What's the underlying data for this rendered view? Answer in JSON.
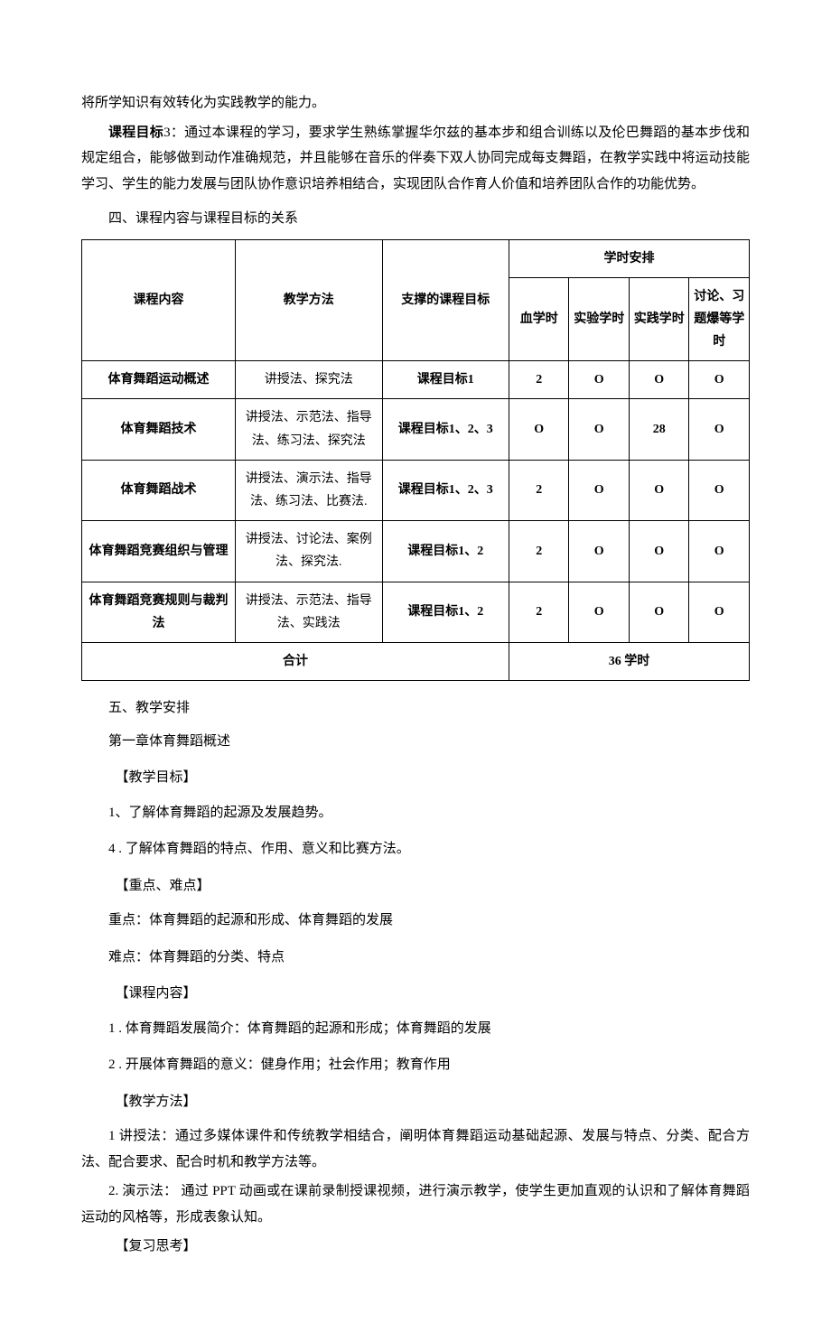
{
  "intro": {
    "line1": "将所学知识有效转化为实践教学的能力。",
    "goal3_label": "课程目标",
    "goal3_num": "3：",
    "goal3_text": "通过本课程的学习，要求学生熟练掌握华尔兹的基本步和组合训练以及伦巴舞蹈的基本步伐和规定组合，能够做到动作准确规范，并且能够在音乐的伴奏下双人协同完成每支舞蹈，在教学实践中将运动技能学习、学生的能力发展与团队协作意识培养相结合，实现团队合作育人价值和培养团队合作的功能优势。"
  },
  "section4": "四、课程内容与课程目标的关系",
  "table": {
    "headers": {
      "content": "课程内容",
      "method": "教学方法",
      "target": "支撑的课程目标",
      "hours": "学时安排",
      "h1": "血学时",
      "h2": "实验学时",
      "h3": "实践学时",
      "h4": "讨论、习题爆等学时"
    },
    "rows": [
      {
        "content": "体育舞蹈运动概述",
        "method": "讲授法、探究法",
        "target": "课程目标1",
        "h1": "2",
        "h2": "O",
        "h3": "O",
        "h4": "O"
      },
      {
        "content": "体育舞蹈技术",
        "method": "讲授法、示范法、指导法、练习法、探究法",
        "target": "课程目标1、2、3",
        "h1": "O",
        "h2": "O",
        "h3": "28",
        "h4": "O"
      },
      {
        "content": "体育舞蹈战术",
        "method": "讲授法、演示法、指导法、练习法、比赛法.",
        "target": "课程目标1、2、3",
        "h1": "2",
        "h2": "O",
        "h3": "O",
        "h4": "O"
      },
      {
        "content": "体育舞蹈竞赛组织与管理",
        "method": "讲授法、讨论法、案例法、探究法.",
        "target": "课程目标1、2",
        "h1": "2",
        "h2": "O",
        "h3": "O",
        "h4": "O"
      },
      {
        "content": "体育舞蹈竞赛规则与裁判法",
        "method": "讲授法、示范法、指导法、实践法",
        "target": "课程目标1、2",
        "h1": "2",
        "h2": "O",
        "h3": "O",
        "h4": "O"
      }
    ],
    "total_label": "合计",
    "total_value": "36 学时"
  },
  "section5": "五、教学安排",
  "chapter1": {
    "title": "第一章体育舞蹈概述",
    "t_goal": "【教学目标】",
    "g1": "1、了解体育舞蹈的起源及发展趋势。",
    "g2": "4  . 了解体育舞蹈的特点、作用、意义和比赛方法。",
    "t_key": "【重点、难点】",
    "k1": "重点：体育舞蹈的起源和形成、体育舞蹈的发展",
    "k2": "难点：体育舞蹈的分类、特点",
    "t_content": "【课程内容】",
    "c1": "1  . 体育舞蹈发展简介：体育舞蹈的起源和形成；体育舞蹈的发展",
    "c2": "2  . 开展体育舞蹈的意义：健身作用；社会作用；教育作用",
    "t_method": "【教学方法】",
    "m1": "1 讲授法：通过多媒体课件和传统教学相结合，阐明体育舞蹈运动基础起源、发展与特点、分类、配合方法、配合要求、配合时机和教学方法等。",
    "m2": "2. 演示法： 通过 PPT 动画或在课前录制授课视频，进行演示教学，使学生更加直观的认识和了解体育舞蹈运动的风格等，形成表象认知。",
    "t_review": "【复习思考】"
  }
}
